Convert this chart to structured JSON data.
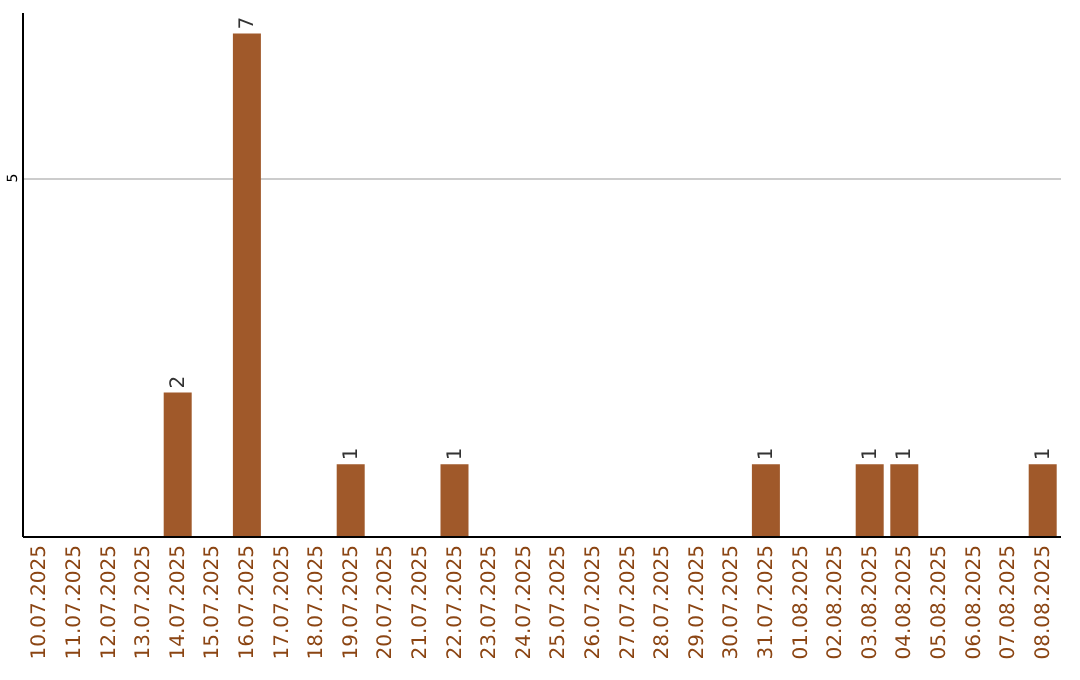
{
  "chart_data": {
    "type": "bar",
    "categories": [
      "10.07.2025",
      "11.07.2025",
      "12.07.2025",
      "13.07.2025",
      "14.07.2025",
      "15.07.2025",
      "16.07.2025",
      "17.07.2025",
      "18.07.2025",
      "19.07.2025",
      "20.07.2025",
      "21.07.2025",
      "22.07.2025",
      "23.07.2025",
      "24.07.2025",
      "25.07.2025",
      "26.07.2025",
      "27.07.2025",
      "28.07.2025",
      "29.07.2025",
      "30.07.2025",
      "31.07.2025",
      "01.08.2025",
      "02.08.2025",
      "03.08.2025",
      "04.08.2025",
      "05.08.2025",
      "06.08.2025",
      "07.08.2025",
      "08.08.2025"
    ],
    "values": [
      0,
      0,
      0,
      0,
      2,
      0,
      7,
      0,
      0,
      1,
      0,
      0,
      1,
      0,
      0,
      0,
      0,
      0,
      0,
      0,
      0,
      1,
      0,
      0,
      1,
      1,
      0,
      0,
      0,
      1
    ],
    "value_labels": [
      null,
      null,
      null,
      null,
      "2",
      null,
      "7",
      null,
      null,
      "1",
      null,
      null,
      "1",
      null,
      null,
      null,
      null,
      null,
      null,
      null,
      null,
      "1",
      null,
      null,
      "1",
      "1",
      null,
      null,
      null,
      "1"
    ],
    "color": "#a0592a",
    "ylim": [
      0,
      7.3
    ],
    "yticks": [
      5
    ],
    "grid": "y"
  }
}
